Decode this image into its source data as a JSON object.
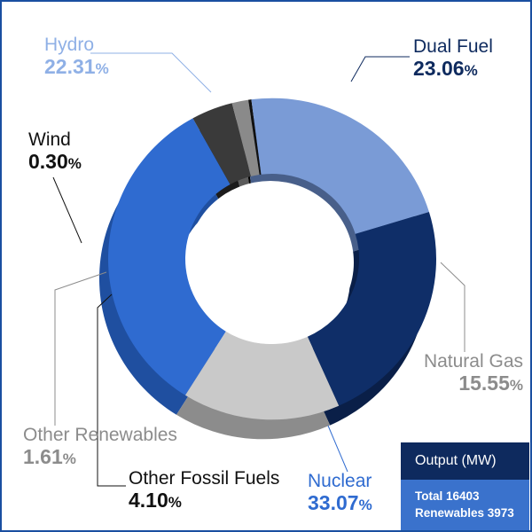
{
  "chart_data": {
    "type": "pie",
    "style": "3d-donut",
    "slices": [
      {
        "name": "Nuclear",
        "value": 33.07,
        "unit": "%",
        "color": "#2f6bd0",
        "side_color": "#1f4fa0"
      },
      {
        "name": "Other Fossil Fuels",
        "value": 4.1,
        "unit": "%",
        "color": "#3a3a3a",
        "side_color": "#1c1c1c"
      },
      {
        "name": "Other Renewables",
        "value": 1.61,
        "unit": "%",
        "color": "#8a8a8a",
        "side_color": "#5c5c5c"
      },
      {
        "name": "Wind",
        "value": 0.3,
        "unit": "%",
        "color": "#111111",
        "side_color": "#000000"
      },
      {
        "name": "Hydro",
        "value": 22.31,
        "unit": "%",
        "color": "#7a9bd6",
        "side_color": "#485f8a"
      },
      {
        "name": "Dual Fuel",
        "value": 23.06,
        "unit": "%",
        "color": "#0f2e68",
        "side_color": "#0a1f48"
      },
      {
        "name": "Natural Gas",
        "value": 15.55,
        "unit": "%",
        "color": "#c9c9c9",
        "side_color": "#8c8c8c"
      }
    ],
    "label_colors": {
      "Hydro": "#8fb0e6",
      "Dual Fuel": "#0e2a5e",
      "Wind": "#111111",
      "Other Renewables": "#8c8c8c",
      "Other Fossil Fuels": "#111111",
      "Nuclear": "#2f6bd0",
      "Natural Gas": "#8c8c8c"
    },
    "legend": "none"
  },
  "output_box": {
    "title": "Output (MW)",
    "total_label": "Total 16403",
    "renewables_label": "Renewables 3973"
  }
}
